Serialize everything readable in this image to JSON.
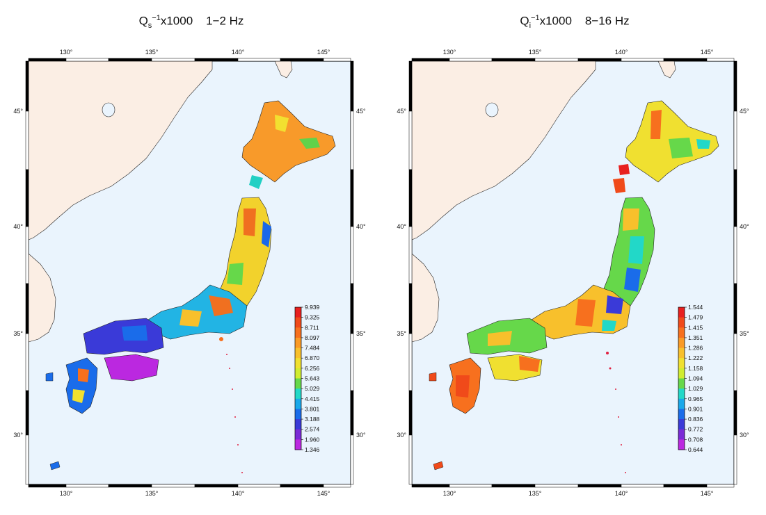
{
  "panels": [
    {
      "title": {
        "q": "Q",
        "sub": "s",
        "sup": "−1",
        "mult": "x1000",
        "band": "1−2 Hz"
      },
      "colorbar": [
        "9.939",
        "9.325",
        "8.711",
        "8.097",
        "7.484",
        "6.870",
        "6.256",
        "5.643",
        "5.029",
        "4.415",
        "3.801",
        "3.188",
        "2.574",
        "1.960",
        "1.346"
      ],
      "colorbar_colors": [
        "#e8201f",
        "#f04a1a",
        "#f7701e",
        "#fa9a26",
        "#f8c02c",
        "#f0e030",
        "#d0ec30",
        "#66d84a",
        "#22d8c8",
        "#18a8ea",
        "#1a6cea",
        "#3a3ad8",
        "#7a2ad6",
        "#bb28e0",
        "#f23ef0"
      ]
    },
    {
      "title": {
        "q": "Q",
        "sub": "i",
        "sup": "−1",
        "mult": "x1000",
        "band": "8−16 Hz"
      },
      "colorbar": [
        "1.544",
        "1.479",
        "1.415",
        "1.351",
        "1.286",
        "1.222",
        "1.158",
        "1.094",
        "1.029",
        "0.965",
        "0.901",
        "0.836",
        "0.772",
        "0.708",
        "0.644"
      ],
      "colorbar_colors": [
        "#e8201f",
        "#f04a1a",
        "#f7701e",
        "#fa9a26",
        "#f8c02c",
        "#f0e030",
        "#d0ec30",
        "#66d84a",
        "#22d8c8",
        "#18a8ea",
        "#1a6cea",
        "#3a3ad8",
        "#7a2ad6",
        "#bb28e0",
        "#f23ef0"
      ]
    }
  ],
  "axes": {
    "lon_ticks": [
      "130°",
      "135°",
      "140°",
      "145°"
    ],
    "lat_ticks": [
      "45°",
      "40°",
      "35°",
      "30°"
    ]
  },
  "colors": {
    "ocean": "#eaf4fd",
    "mainland": "#fbeee4",
    "frame": "#000000"
  }
}
